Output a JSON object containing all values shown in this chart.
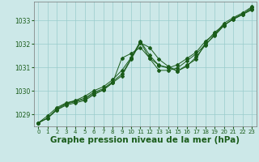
{
  "background_color": "#cce8e8",
  "plot_bg_color": "#cce8e8",
  "line_color": "#1a5c1a",
  "grid_color": "#99cccc",
  "xlabel": "Graphe pression niveau de la mer (hPa)",
  "xlabel_fontsize": 7.5,
  "ylim": [
    1028.5,
    1033.8
  ],
  "xlim": [
    -0.5,
    23.5
  ],
  "yticks": [
    1029,
    1030,
    1031,
    1032,
    1033
  ],
  "xticks": [
    0,
    1,
    2,
    3,
    4,
    5,
    6,
    7,
    8,
    9,
    10,
    11,
    12,
    13,
    14,
    15,
    16,
    17,
    18,
    19,
    20,
    21,
    22,
    23
  ],
  "series": [
    [
      1028.65,
      1028.85,
      1029.2,
      1029.4,
      1029.5,
      1029.6,
      1029.85,
      1030.05,
      1030.35,
      1031.4,
      1031.6,
      1031.85,
      1031.4,
      1031.1,
      1031.0,
      1030.85,
      1031.1,
      1031.35,
      1032.05,
      1032.5,
      1032.8,
      1033.05,
      1033.25,
      1033.55
    ],
    [
      1028.65,
      1028.85,
      1029.2,
      1029.45,
      1029.55,
      1029.65,
      1029.9,
      1030.05,
      1030.35,
      1030.65,
      1031.35,
      1032.05,
      1031.85,
      1031.35,
      1031.05,
      1030.85,
      1031.05,
      1031.45,
      1031.95,
      1032.4,
      1032.8,
      1033.05,
      1033.25,
      1033.45
    ],
    [
      1028.65,
      1028.85,
      1029.25,
      1029.48,
      1029.58,
      1029.7,
      1029.95,
      1030.1,
      1030.4,
      1030.72,
      1031.38,
      1032.08,
      1031.38,
      1030.88,
      1030.88,
      1030.98,
      1031.28,
      1031.58,
      1031.98,
      1032.35,
      1032.78,
      1033.08,
      1033.28,
      1033.48
    ],
    [
      1028.65,
      1028.95,
      1029.3,
      1029.5,
      1029.6,
      1029.78,
      1030.02,
      1030.18,
      1030.48,
      1030.88,
      1031.42,
      1032.12,
      1031.52,
      1031.08,
      1030.98,
      1031.12,
      1031.38,
      1031.65,
      1032.12,
      1032.42,
      1032.88,
      1033.12,
      1033.32,
      1033.58
    ]
  ]
}
